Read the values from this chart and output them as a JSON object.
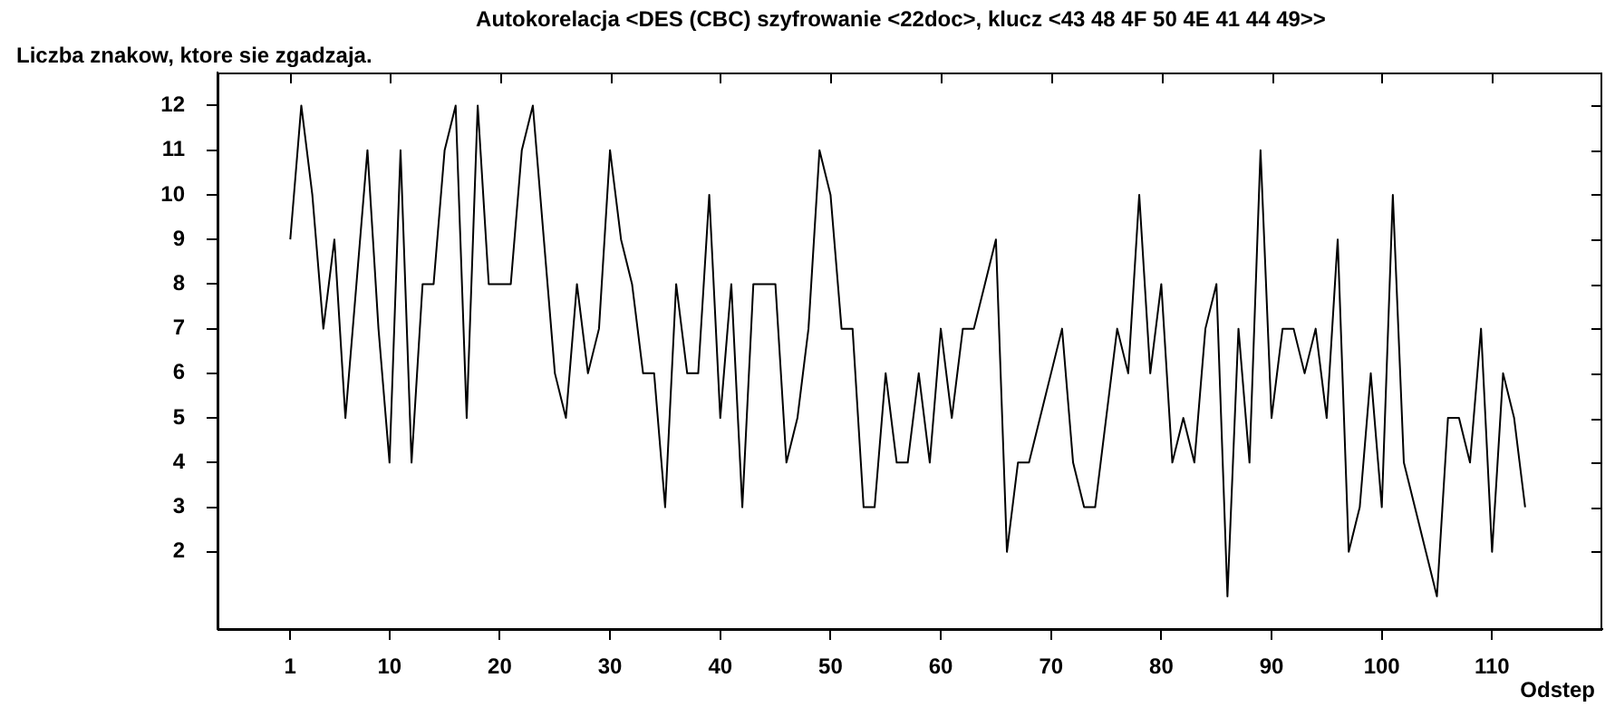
{
  "chart_data": {
    "type": "line",
    "title": "Autokorelacja <DES (CBC) szyfrowanie <22doc>, klucz <43 48 4F 50 4E 41 44 49>>",
    "ylabel": "Liczba znakow, ktore sie zgadzaja.",
    "xlabel": "Odstep",
    "x": [
      1,
      2,
      3,
      4,
      5,
      6,
      7,
      8,
      9,
      10,
      11,
      12,
      13,
      14,
      15,
      16,
      17,
      18,
      19,
      20,
      21,
      22,
      23,
      24,
      25,
      26,
      27,
      28,
      29,
      30,
      31,
      32,
      33,
      34,
      35,
      36,
      37,
      38,
      39,
      40,
      41,
      42,
      43,
      44,
      45,
      46,
      47,
      48,
      49,
      50,
      51,
      52,
      53,
      54,
      55,
      56,
      57,
      58,
      59,
      60,
      61,
      62,
      63,
      64,
      65,
      66,
      67,
      68,
      69,
      70,
      71,
      72,
      73,
      74,
      75,
      76,
      77,
      78,
      79,
      80,
      81,
      82,
      83,
      84,
      85,
      86,
      87,
      88,
      89,
      90,
      91,
      92,
      93,
      94,
      95,
      96,
      97,
      98,
      99,
      100,
      101,
      102,
      103,
      104,
      105,
      106,
      107,
      108,
      109,
      110,
      111,
      112,
      113
    ],
    "values": [
      9,
      12,
      10,
      7,
      9,
      5,
      8,
      11,
      7,
      4,
      11,
      4,
      8,
      8,
      11,
      12,
      5,
      12,
      8,
      8,
      8,
      11,
      12,
      9,
      6,
      5,
      8,
      6,
      7,
      11,
      9,
      8,
      6,
      6,
      3,
      8,
      6,
      6,
      10,
      5,
      8,
      3,
      8,
      8,
      8,
      4,
      5,
      7,
      11,
      10,
      7,
      7,
      3,
      3,
      6,
      4,
      4,
      6,
      4,
      7,
      5,
      7,
      7,
      8,
      9,
      2,
      4,
      4,
      5,
      6,
      7,
      4,
      3,
      3,
      5,
      7,
      6,
      10,
      6,
      8,
      4,
      5,
      4,
      7,
      8,
      1,
      7,
      4,
      11,
      5,
      7,
      7,
      6,
      7,
      5,
      9,
      2,
      3,
      6,
      3,
      10,
      4,
      3,
      2,
      1,
      5,
      5,
      4,
      7,
      2,
      6,
      5,
      3
    ],
    "color": "#000000",
    "xlim": [
      -5.6,
      120
    ],
    "ylim": [
      0.27,
      12.74
    ],
    "xticks": [
      1,
      10,
      20,
      30,
      40,
      50,
      60,
      70,
      80,
      90,
      100,
      110
    ],
    "yticks": [
      2,
      3,
      4,
      5,
      6,
      7,
      8,
      9,
      10,
      11,
      12
    ],
    "grid": false,
    "legend": false,
    "marker": "none",
    "line_style": "solid"
  }
}
